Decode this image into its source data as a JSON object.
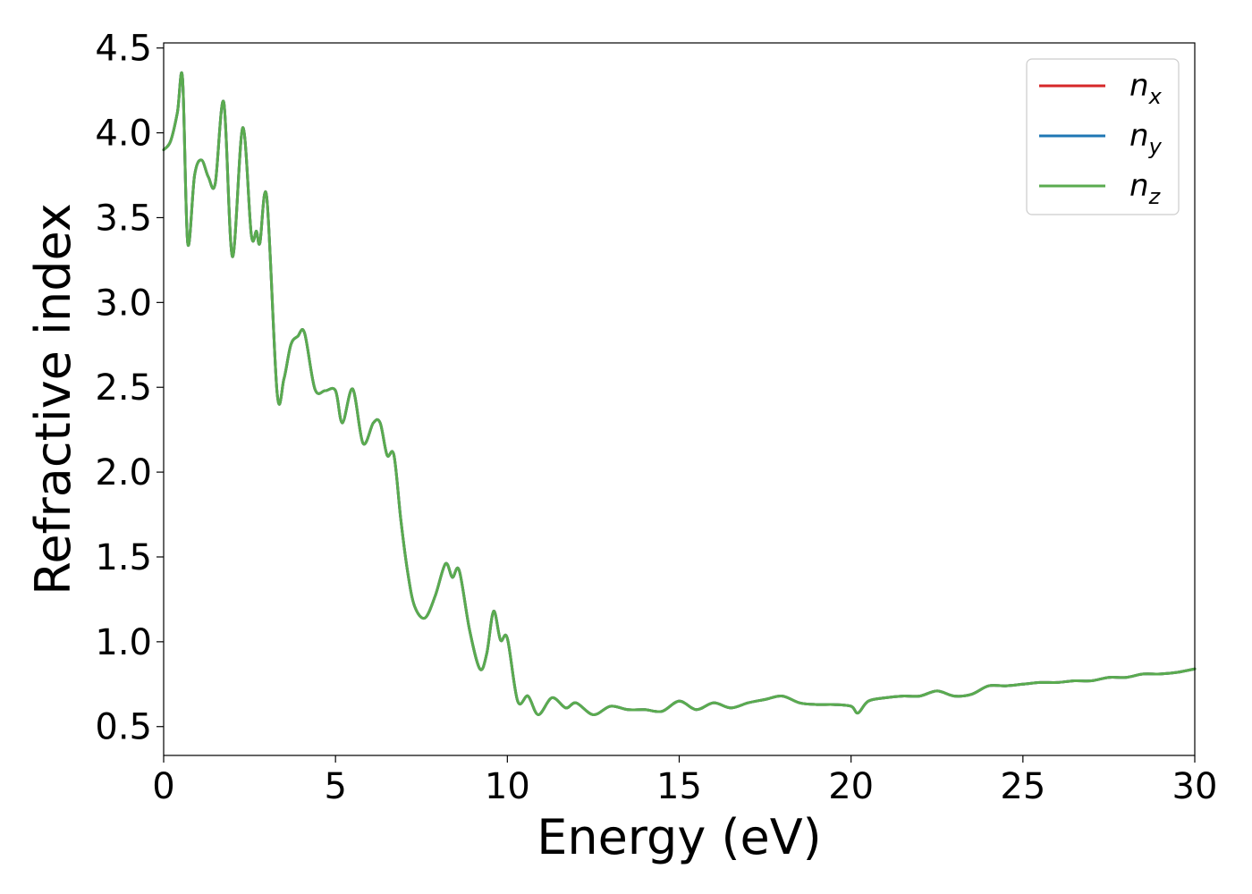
{
  "chart_data": {
    "type": "line",
    "title": "",
    "xlabel": "Energy (eV)",
    "ylabel": "Refractive index",
    "xlim": [
      0,
      30
    ],
    "ylim": [
      0.33,
      4.53
    ],
    "xticks": [
      0,
      5,
      10,
      15,
      20,
      25,
      30
    ],
    "xtick_labels": [
      "0",
      "5",
      "10",
      "15",
      "20",
      "25",
      "30"
    ],
    "yticks": [
      0.5,
      1.0,
      1.5,
      2.0,
      2.5,
      3.0,
      3.5,
      4.0,
      4.5
    ],
    "ytick_labels": [
      "0.5",
      "1.0",
      "1.5",
      "2.0",
      "2.5",
      "3.0",
      "3.5",
      "4.0",
      "4.5"
    ],
    "grid": false,
    "legend_position": "top-right",
    "x": [
      0,
      0.2,
      0.4,
      0.55,
      0.7,
      0.9,
      1.1,
      1.3,
      1.5,
      1.75,
      2.0,
      2.3,
      2.55,
      2.7,
      2.8,
      3.0,
      3.3,
      3.5,
      3.7,
      3.9,
      4.1,
      4.4,
      4.7,
      5.0,
      5.2,
      5.5,
      5.8,
      6.1,
      6.3,
      6.5,
      6.7,
      6.9,
      7.1,
      7.3,
      7.6,
      7.9,
      8.2,
      8.4,
      8.6,
      8.9,
      9.2,
      9.4,
      9.6,
      9.8,
      10.0,
      10.3,
      10.6,
      10.9,
      11.3,
      11.7,
      12.0,
      12.5,
      13.0,
      13.5,
      14.0,
      14.5,
      15.0,
      15.5,
      16.0,
      16.5,
      17.0,
      17.5,
      18.0,
      18.5,
      19.0,
      19.5,
      20.0,
      20.2,
      20.5,
      21.0,
      21.5,
      22.0,
      22.5,
      23.0,
      23.5,
      24.0,
      24.5,
      25.0,
      25.5,
      26.0,
      26.5,
      27.0,
      27.5,
      28.0,
      28.5,
      29.0,
      29.5,
      30.0
    ],
    "series": [
      {
        "name": "n_x",
        "color": "#d62728",
        "values": [
          3.9,
          3.95,
          4.12,
          4.32,
          3.35,
          3.75,
          3.84,
          3.74,
          3.7,
          4.18,
          3.27,
          4.03,
          3.4,
          3.42,
          3.35,
          3.62,
          2.47,
          2.55,
          2.75,
          2.8,
          2.82,
          2.49,
          2.48,
          2.48,
          2.29,
          2.49,
          2.17,
          2.29,
          2.29,
          2.1,
          2.1,
          1.72,
          1.41,
          1.21,
          1.14,
          1.27,
          1.46,
          1.38,
          1.42,
          1.07,
          0.84,
          0.93,
          1.18,
          1.01,
          1.02,
          0.65,
          0.68,
          0.57,
          0.67,
          0.61,
          0.64,
          0.57,
          0.62,
          0.6,
          0.6,
          0.59,
          0.65,
          0.6,
          0.64,
          0.61,
          0.64,
          0.66,
          0.68,
          0.64,
          0.63,
          0.63,
          0.62,
          0.58,
          0.65,
          0.67,
          0.68,
          0.68,
          0.71,
          0.68,
          0.69,
          0.74,
          0.74,
          0.75,
          0.76,
          0.76,
          0.77,
          0.77,
          0.79,
          0.79,
          0.81,
          0.81,
          0.82,
          0.84
        ]
      },
      {
        "name": "n_y",
        "color": "#1f77b4",
        "values": [
          3.9,
          3.95,
          4.12,
          4.32,
          3.35,
          3.75,
          3.84,
          3.74,
          3.7,
          4.18,
          3.27,
          4.03,
          3.4,
          3.42,
          3.35,
          3.62,
          2.47,
          2.55,
          2.75,
          2.8,
          2.82,
          2.49,
          2.48,
          2.48,
          2.29,
          2.49,
          2.17,
          2.29,
          2.29,
          2.1,
          2.1,
          1.72,
          1.41,
          1.21,
          1.14,
          1.27,
          1.46,
          1.38,
          1.42,
          1.07,
          0.84,
          0.93,
          1.18,
          1.01,
          1.02,
          0.65,
          0.68,
          0.57,
          0.67,
          0.61,
          0.64,
          0.57,
          0.62,
          0.6,
          0.6,
          0.59,
          0.65,
          0.6,
          0.64,
          0.61,
          0.64,
          0.66,
          0.68,
          0.64,
          0.63,
          0.63,
          0.62,
          0.58,
          0.65,
          0.67,
          0.68,
          0.68,
          0.71,
          0.68,
          0.69,
          0.74,
          0.74,
          0.75,
          0.76,
          0.76,
          0.77,
          0.77,
          0.79,
          0.79,
          0.81,
          0.81,
          0.82,
          0.84
        ]
      },
      {
        "name": "n_z",
        "color": "#5aab4f",
        "values": [
          3.9,
          3.95,
          4.12,
          4.32,
          3.35,
          3.75,
          3.84,
          3.74,
          3.7,
          4.18,
          3.27,
          4.03,
          3.4,
          3.42,
          3.35,
          3.62,
          2.47,
          2.55,
          2.75,
          2.8,
          2.82,
          2.49,
          2.48,
          2.48,
          2.29,
          2.49,
          2.17,
          2.29,
          2.29,
          2.1,
          2.1,
          1.72,
          1.41,
          1.21,
          1.14,
          1.27,
          1.46,
          1.38,
          1.42,
          1.07,
          0.84,
          0.93,
          1.18,
          1.01,
          1.02,
          0.65,
          0.68,
          0.57,
          0.67,
          0.61,
          0.64,
          0.57,
          0.62,
          0.6,
          0.6,
          0.59,
          0.65,
          0.6,
          0.64,
          0.61,
          0.64,
          0.66,
          0.68,
          0.64,
          0.63,
          0.63,
          0.62,
          0.58,
          0.65,
          0.67,
          0.68,
          0.68,
          0.71,
          0.68,
          0.69,
          0.74,
          0.74,
          0.75,
          0.76,
          0.76,
          0.77,
          0.77,
          0.79,
          0.79,
          0.81,
          0.81,
          0.82,
          0.84
        ]
      }
    ]
  }
}
